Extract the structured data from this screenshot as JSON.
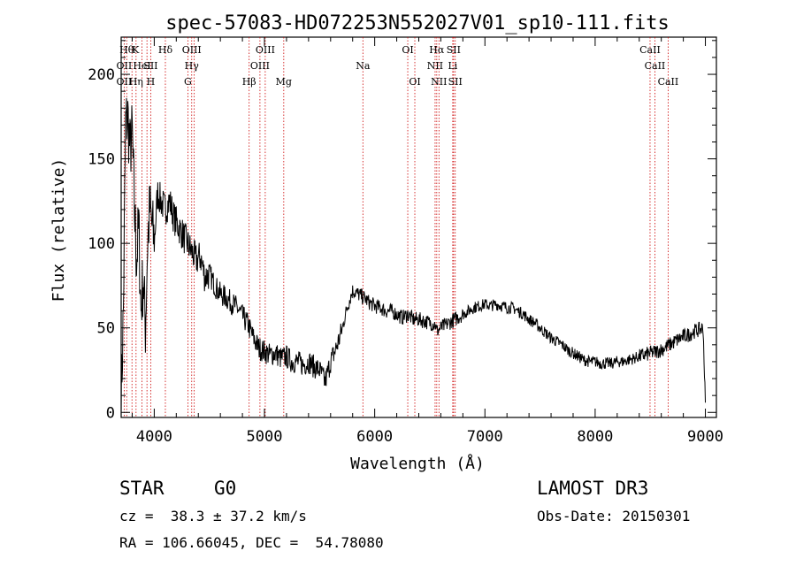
{
  "chart_data": {
    "type": "line",
    "title": "spec-57083-HD072253N552027V01_sp10-111.fits",
    "xlabel": "Wavelength (Å)",
    "ylabel": "Flux (relative)",
    "xlim": [
      3700,
      9100
    ],
    "ylim": [
      -3,
      222
    ],
    "xticks": [
      4000,
      5000,
      6000,
      7000,
      8000,
      9000
    ],
    "yticks": [
      0,
      50,
      100,
      150,
      200
    ],
    "series": [
      {
        "name": "flux",
        "x": [
          3700,
          3720,
          3740,
          3760,
          3780,
          3800,
          3820,
          3840,
          3860,
          3880,
          3900,
          3920,
          3940,
          3960,
          3980,
          4000,
          4030,
          4060,
          4100,
          4140,
          4180,
          4220,
          4260,
          4300,
          4340,
          4380,
          4420,
          4460,
          4500,
          4550,
          4600,
          4650,
          4700,
          4750,
          4800,
          4850,
          4900,
          4950,
          5000,
          5050,
          5100,
          5150,
          5200,
          5250,
          5300,
          5350,
          5400,
          5450,
          5500,
          5550,
          5580,
          5600,
          5650,
          5700,
          5750,
          5800,
          5850,
          5900,
          5950,
          6000,
          6050,
          6100,
          6150,
          6200,
          6250,
          6300,
          6350,
          6400,
          6450,
          6500,
          6550,
          6563,
          6600,
          6650,
          6700,
          6750,
          6800,
          6850,
          6900,
          6950,
          7000,
          7050,
          7100,
          7150,
          7200,
          7250,
          7300,
          7350,
          7400,
          7450,
          7500,
          7550,
          7600,
          7650,
          7700,
          7750,
          7800,
          7850,
          7900,
          7950,
          8000,
          8050,
          8100,
          8150,
          8200,
          8250,
          8300,
          8350,
          8400,
          8450,
          8500,
          8550,
          8600,
          8650,
          8700,
          8750,
          8800,
          8850,
          8900,
          8950,
          8980,
          9000
        ],
        "y": [
          5,
          60,
          170,
          175,
          155,
          165,
          120,
          90,
          110,
          60,
          80,
          50,
          100,
          120,
          110,
          100,
          130,
          125,
          120,
          125,
          115,
          110,
          105,
          100,
          95,
          90,
          92,
          80,
          82,
          75,
          70,
          68,
          65,
          62,
          57,
          52,
          44,
          38,
          36,
          34,
          35,
          32,
          33,
          30,
          30,
          28,
          30,
          27,
          25,
          18,
          25,
          30,
          38,
          48,
          62,
          72,
          70,
          68,
          65,
          63,
          62,
          60,
          60,
          58,
          56,
          58,
          55,
          55,
          54,
          53,
          52,
          48,
          50,
          52,
          54,
          56,
          58,
          60,
          62,
          63,
          64,
          63,
          64,
          63,
          62,
          62,
          60,
          58,
          55,
          53,
          50,
          47,
          44,
          42,
          40,
          37,
          35,
          33,
          31,
          30,
          30,
          29,
          29,
          29,
          30,
          30,
          31,
          32,
          33,
          34,
          35,
          36,
          37,
          39,
          41,
          43,
          45,
          46,
          48,
          49,
          50,
          5
        ]
      }
    ],
    "lines_top": [
      {
        "wl": 3750,
        "label": "Hθ",
        "row": 1
      },
      {
        "wl": 3830,
        "label": "K",
        "row": 1
      },
      {
        "wl": 4101,
        "label": "Hδ",
        "row": 1
      },
      {
        "wl": 4340,
        "label": "OIII",
        "row": 1
      },
      {
        "wl": 5007,
        "label": "OIII",
        "row": 1
      },
      {
        "wl": 6300,
        "label": "OI",
        "row": 1
      },
      {
        "wl": 6563,
        "label": "Hα",
        "row": 1
      },
      {
        "wl": 6716,
        "label": "SII",
        "row": 1
      },
      {
        "wl": 8498,
        "label": "CaII",
        "row": 1
      },
      {
        "wl": 3727,
        "label": "OII",
        "row": 2
      },
      {
        "wl": 3889,
        "label": "HeI",
        "row": 2
      },
      {
        "wl": 3968,
        "label": "SII",
        "row": 2
      },
      {
        "wl": 4340,
        "label": "Hγ",
        "row": 2
      },
      {
        "wl": 4959,
        "label": "OIII",
        "row": 2
      },
      {
        "wl": 5893,
        "label": "Na",
        "row": 2
      },
      {
        "wl": 6548,
        "label": "NII",
        "row": 2
      },
      {
        "wl": 6708,
        "label": "Li",
        "row": 2
      },
      {
        "wl": 8542,
        "label": "CaII",
        "row": 2
      },
      {
        "wl": 3727,
        "label": "OII",
        "row": 3
      },
      {
        "wl": 3835,
        "label": "Hη",
        "row": 3
      },
      {
        "wl": 3968,
        "label": "H",
        "row": 3
      },
      {
        "wl": 4305,
        "label": "G",
        "row": 3
      },
      {
        "wl": 4861,
        "label": "Hβ",
        "row": 3
      },
      {
        "wl": 5175,
        "label": "Mg",
        "row": 3
      },
      {
        "wl": 6364,
        "label": "OI",
        "row": 3
      },
      {
        "wl": 6583,
        "label": "NII",
        "row": 3
      },
      {
        "wl": 6731,
        "label": "SII",
        "row": 3
      },
      {
        "wl": 8662,
        "label": "CaII",
        "row": 3
      }
    ],
    "line_wavelengths": [
      3727,
      3750,
      3798,
      3835,
      3889,
      3934,
      3968,
      4101,
      4305,
      4340,
      4363,
      4861,
      4959,
      5007,
      5175,
      5893,
      6300,
      6364,
      6548,
      6563,
      6583,
      6708,
      6716,
      6731,
      8498,
      8542,
      8662
    ]
  },
  "info": {
    "object_class": "STAR",
    "subclass": "G0",
    "survey": "LAMOST DR3",
    "redshift_text": "cz =  38.3 ± 37.2 km/s",
    "obs_date": "Obs-Date: 20150301",
    "coords": "RA = 106.66045, DEC =  54.78080"
  },
  "colors": {
    "axis": "#000000",
    "spectrum": "#000000",
    "line_marker": "#cc0000"
  }
}
